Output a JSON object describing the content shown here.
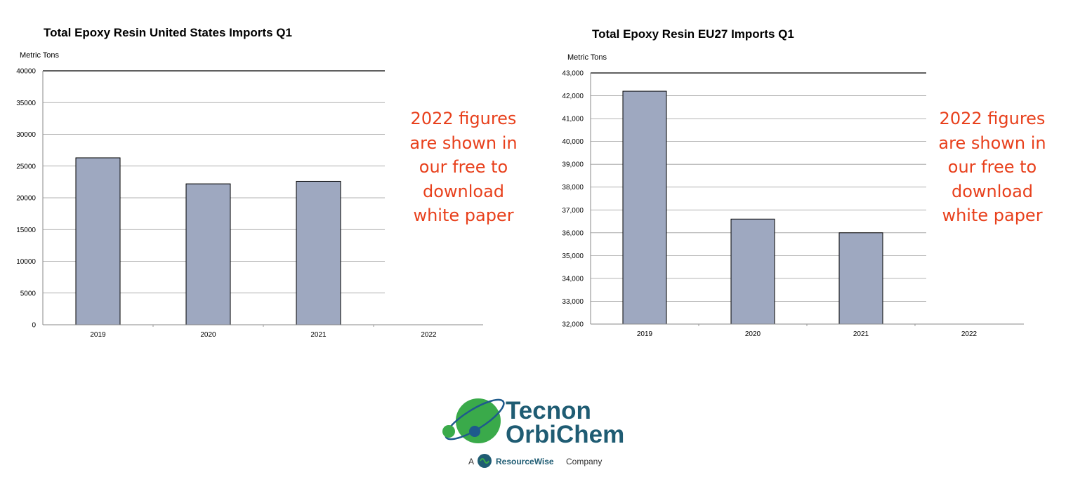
{
  "chart_data": [
    {
      "type": "bar",
      "title": "Total Epoxy Resin United States Imports Q1",
      "ylabel": "Metric Tons",
      "categories": [
        "2019",
        "2020",
        "2021",
        "2022"
      ],
      "values": [
        26300,
        22200,
        22600,
        null
      ],
      "ylim": [
        0,
        40000
      ],
      "yticks": [
        0,
        5000,
        10000,
        15000,
        20000,
        25000,
        30000,
        35000,
        40000
      ],
      "ytick_labels": [
        "0",
        "5000",
        "10000",
        "15000",
        "20000",
        "25000",
        "30000",
        "35000",
        "40000"
      ],
      "grid": true,
      "bar_color": "#9ea8c0",
      "annotation": [
        "2022 figures",
        "are shown in",
        "our free to",
        "download",
        "white paper"
      ]
    },
    {
      "type": "bar",
      "title": "Total Epoxy Resin EU27 Imports Q1",
      "ylabel": "Metric Tons",
      "categories": [
        "2019",
        "2020",
        "2021",
        "2022"
      ],
      "values": [
        42200,
        36600,
        36000,
        null
      ],
      "ylim": [
        32000,
        43000
      ],
      "yticks": [
        32000,
        33000,
        34000,
        35000,
        36000,
        37000,
        38000,
        39000,
        40000,
        41000,
        42000,
        43000
      ],
      "ytick_labels": [
        "32,000",
        "33,000",
        "34,000",
        "35,000",
        "36,000",
        "37,000",
        "38,000",
        "39,000",
        "40,000",
        "41,000",
        "42,000",
        "43,000"
      ],
      "grid": true,
      "bar_color": "#9ea8c0",
      "annotation": [
        "2022 figures",
        "are shown in",
        "our free to",
        "download",
        "white paper"
      ]
    }
  ],
  "logo": {
    "line1": "Tecnon",
    "line2": "OrbiChem",
    "tagline_prefix": "A",
    "tagline_brand": "ResourceWise",
    "tagline_suffix": "Company",
    "colors": {
      "green": "#3aaa4a",
      "navy": "#1f5c73",
      "blue": "#1e5a8c"
    }
  }
}
